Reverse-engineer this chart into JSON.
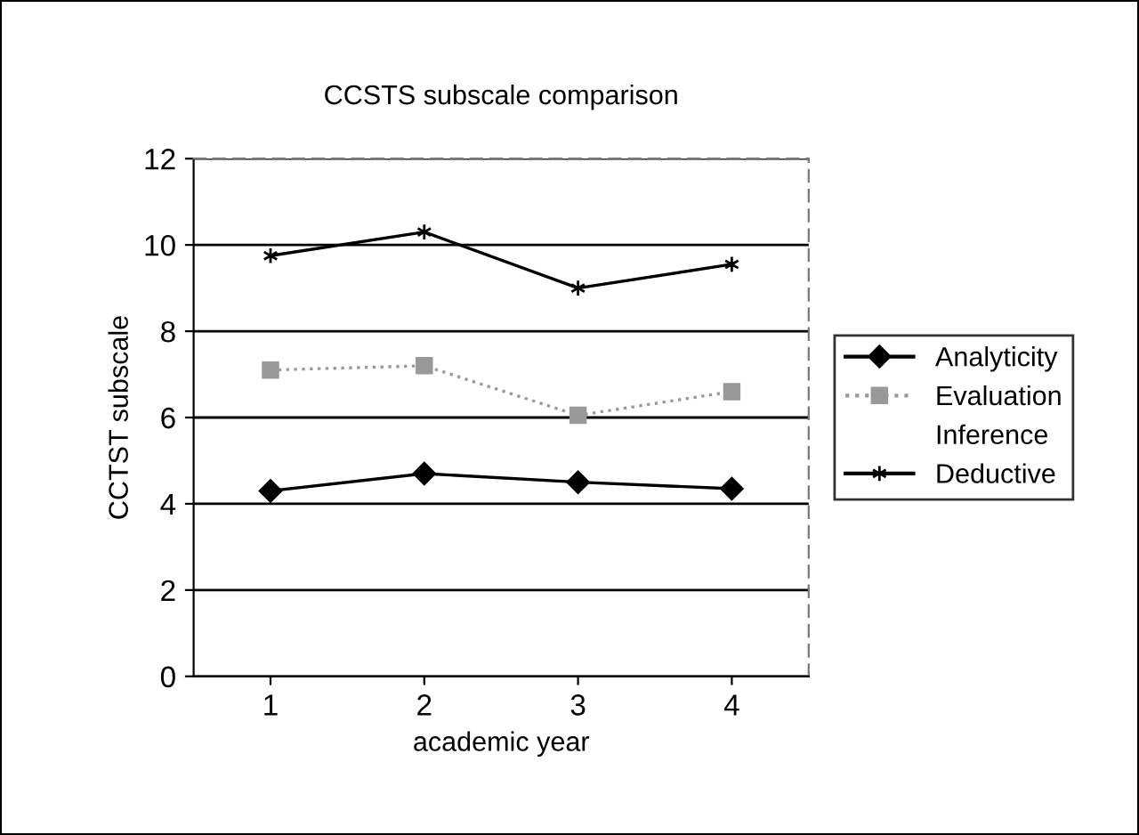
{
  "chart_data": {
    "type": "line",
    "title": "CCSTS subscale comparison",
    "xlabel": "academic year",
    "ylabel": "CCTST subscale",
    "categories": [
      "1",
      "2",
      "3",
      "4"
    ],
    "series": [
      {
        "name": "Analyticity",
        "color": "#000000",
        "marker": "diamond",
        "line_style": "solid",
        "values": [
          4.3,
          4.7,
          4.5,
          4.35
        ]
      },
      {
        "name": "Evaluation",
        "color": "#999999",
        "marker": "square",
        "line_style": "dotted",
        "values": [
          7.1,
          7.2,
          6.05,
          6.6
        ]
      },
      {
        "name": "Inference",
        "marker": "none",
        "values": [
          null,
          null,
          null,
          null
        ]
      },
      {
        "name": "Deductive",
        "color": "#000000",
        "marker": "cross",
        "line_style": "solid",
        "values": [
          9.75,
          10.3,
          9.0,
          9.55
        ]
      }
    ],
    "ylim": [
      0,
      12
    ],
    "yticks": [
      0,
      2,
      4,
      6,
      8,
      10,
      12
    ],
    "grid": "y",
    "legend": "right"
  }
}
